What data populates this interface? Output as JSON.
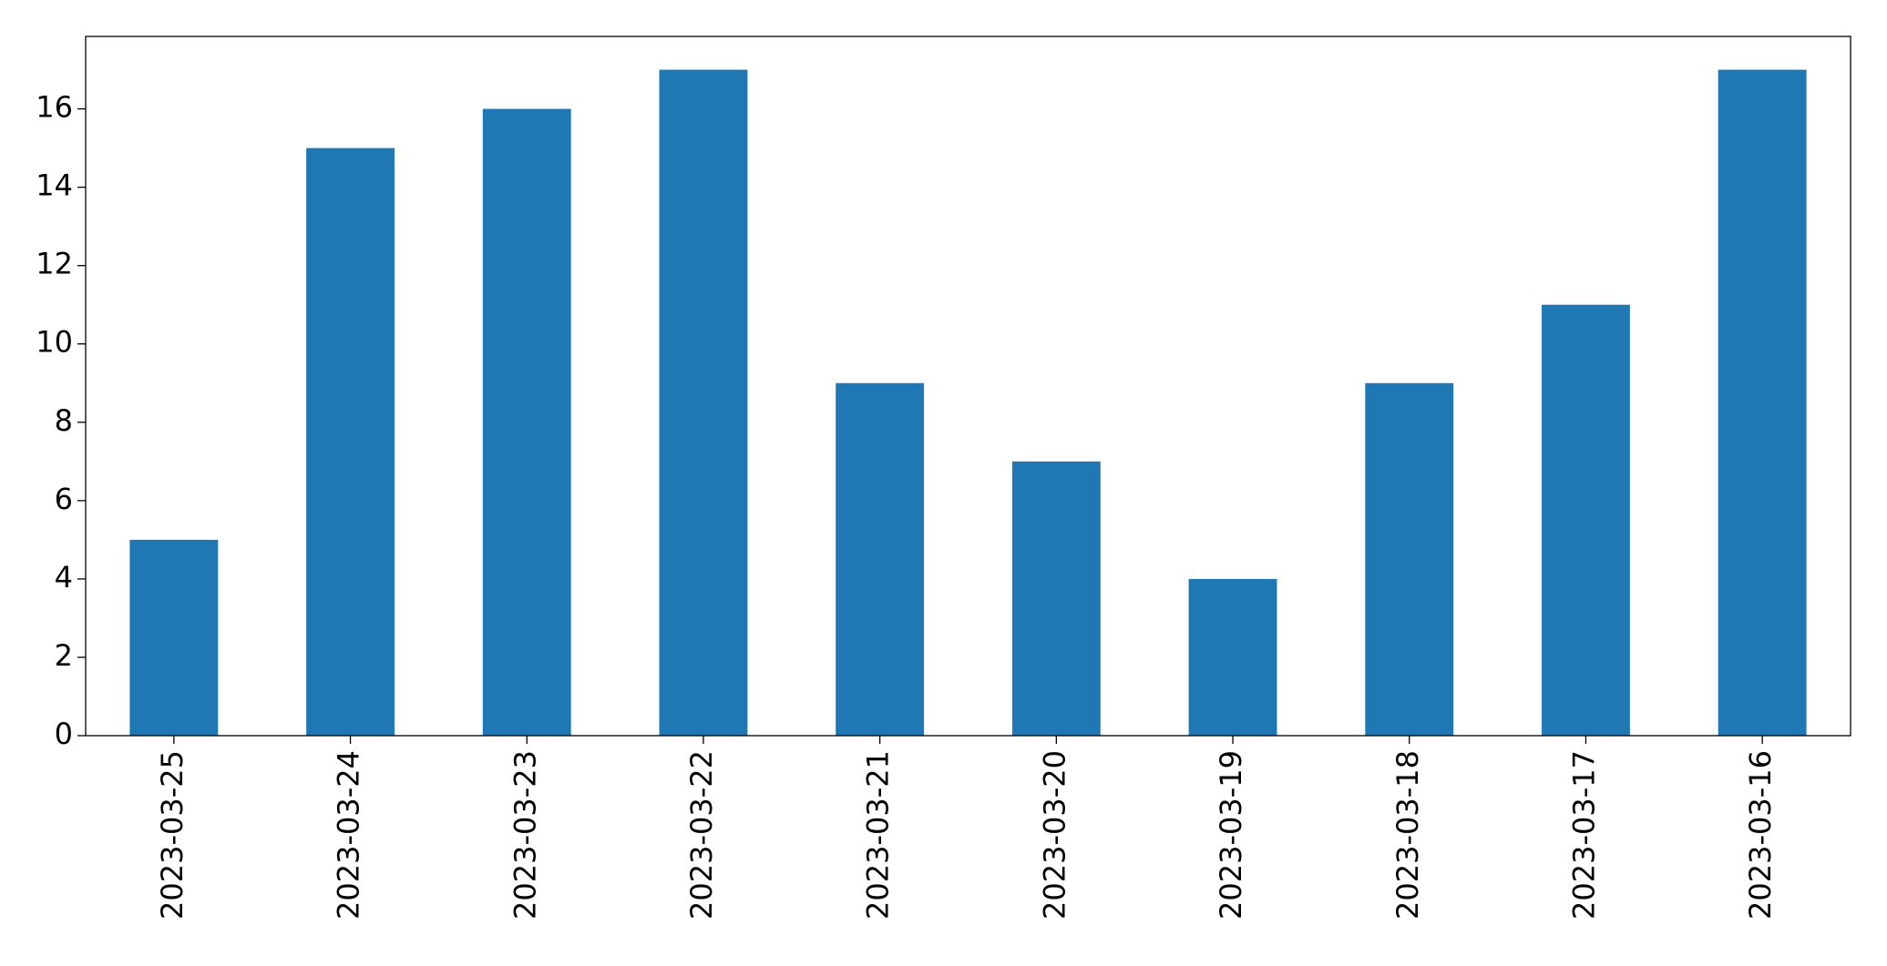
{
  "chart_data": {
    "type": "bar",
    "categories": [
      "2023-03-25",
      "2023-03-24",
      "2023-03-23",
      "2023-03-22",
      "2023-03-21",
      "2023-03-20",
      "2023-03-19",
      "2023-03-18",
      "2023-03-17",
      "2023-03-16"
    ],
    "values": [
      5,
      15,
      16,
      17,
      9,
      7,
      4,
      9,
      11,
      17
    ],
    "color": "#1f77b4",
    "ylim": [
      0,
      17.85
    ],
    "yticks": [
      0,
      2,
      4,
      6,
      8,
      10,
      12,
      14,
      16
    ],
    "grid": false
  }
}
